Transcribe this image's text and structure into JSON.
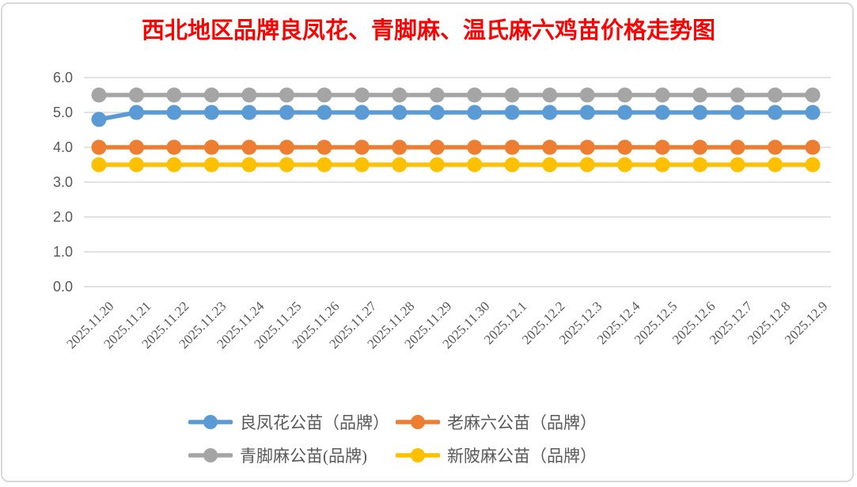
{
  "title": {
    "text": "西北地区品牌良凤花、青脚麻、温氏麻六鸡苗价格走势图",
    "color": "#FF0000"
  },
  "chart_data": {
    "type": "line",
    "x": [
      "2025.11.20",
      "2025.11.21",
      "2025.11.22",
      "2025.11.23",
      "2025.11.24",
      "2025.11.25",
      "2025.11.26",
      "2025.11.27",
      "2025.11.28",
      "2025.11.29",
      "2025.11.30",
      "2025.12.1",
      "2025.12.2",
      "2025.12.3",
      "2025.12.4",
      "2025.12.5",
      "2025.12.6",
      "2025.12.7",
      "2025.12.8",
      "2025.12.9"
    ],
    "series": [
      {
        "name": "良凤花公苗（品牌）",
        "color": "#5B9BD5",
        "values": [
          4.8,
          5.0,
          5.0,
          5.0,
          5.0,
          5.0,
          5.0,
          5.0,
          5.0,
          5.0,
          5.0,
          5.0,
          5.0,
          5.0,
          5.0,
          5.0,
          5.0,
          5.0,
          5.0,
          5.0
        ]
      },
      {
        "name": "老麻六公苗（品牌）",
        "color": "#ED7D31",
        "values": [
          4.0,
          4.0,
          4.0,
          4.0,
          4.0,
          4.0,
          4.0,
          4.0,
          4.0,
          4.0,
          4.0,
          4.0,
          4.0,
          4.0,
          4.0,
          4.0,
          4.0,
          4.0,
          4.0,
          4.0
        ]
      },
      {
        "name": "青脚麻公苗(品牌)",
        "color": "#A5A5A5",
        "values": [
          5.5,
          5.5,
          5.5,
          5.5,
          5.5,
          5.5,
          5.5,
          5.5,
          5.5,
          5.5,
          5.5,
          5.5,
          5.5,
          5.5,
          5.5,
          5.5,
          5.5,
          5.5,
          5.5,
          5.5
        ]
      },
      {
        "name": "新陂麻公苗（品牌）",
        "color": "#FFC000",
        "values": [
          3.5,
          3.5,
          3.5,
          3.5,
          3.5,
          3.5,
          3.5,
          3.5,
          3.5,
          3.5,
          3.5,
          3.5,
          3.5,
          3.5,
          3.5,
          3.5,
          3.5,
          3.5,
          3.5,
          3.5
        ]
      }
    ],
    "ylim": [
      0,
      6
    ],
    "ytick_labels": [
      "0.0",
      "1.0",
      "2.0",
      "3.0",
      "4.0",
      "5.0",
      "6.0"
    ],
    "xlabel": "",
    "ylabel": "",
    "grid": true,
    "grid_color": "#D9D9D9",
    "axis_text_color": "#595959",
    "background": "#FFFFFF",
    "legend_position": "bottom"
  }
}
